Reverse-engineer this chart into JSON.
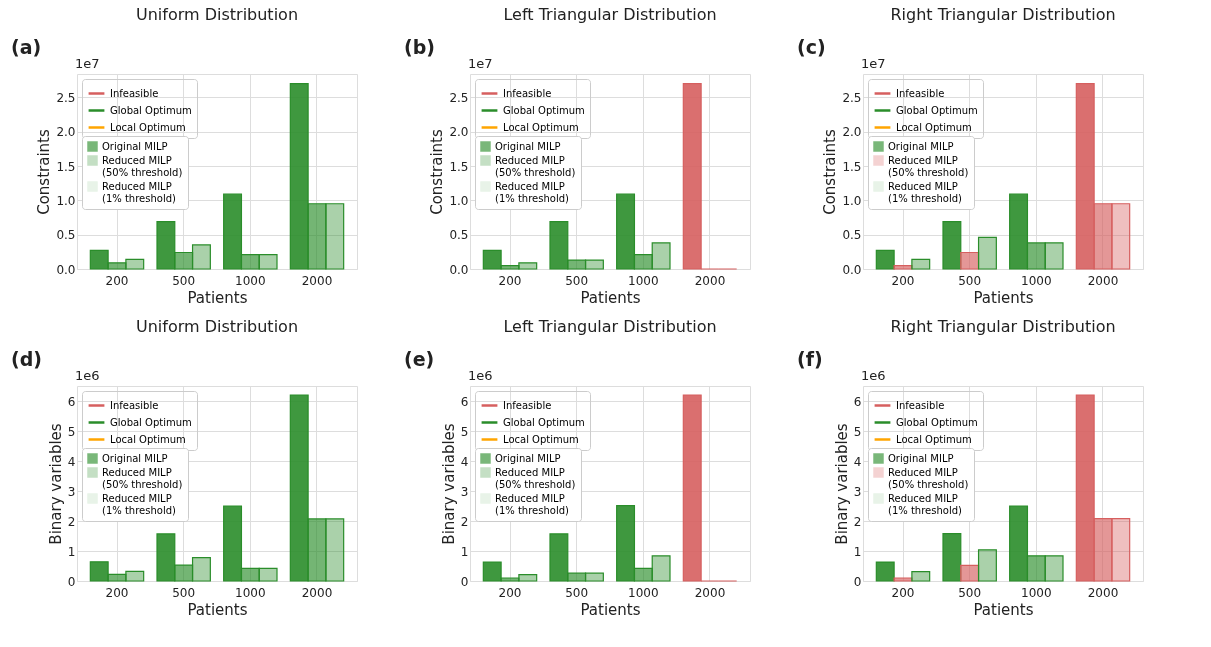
{
  "chart_data": [
    {
      "type": "bar",
      "title": "Uniform Distribution",
      "xlabel": "Patients",
      "ylabel": "Constraints",
      "categories": [
        "200",
        "500",
        "1000",
        "2000"
      ],
      "ylim": [
        0,
        2.84
      ],
      "yticks": [
        {
          "value": 0,
          "label": "0.0"
        },
        0.5,
        {
          "value": 1,
          "label": "1.0"
        },
        1.5,
        {
          "value": 2,
          "label": "2.0"
        },
        2.5
      ],
      "annotations": [
        "(a)",
        "1e7"
      ],
      "grid": true,
      "legend": "top left",
      "series": [
        {
          "name": "Original MILP",
          "values": [
            0.27,
            0.69,
            1.09,
            2.7
          ],
          "colors": [
            "#2a8d2a",
            "#2a8d2a",
            "#2a8d2a",
            "#2a8d2a"
          ]
        },
        {
          "name": "Reduced MILP\n(50% threshold)",
          "values": [
            0.09,
            0.24,
            0.21,
            0.95
          ],
          "colors": [
            "#2a8d2a",
            "#2a8d2a",
            "#2a8d2a",
            "#2a8d2a"
          ]
        },
        {
          "name": "Reduced MILP\n(1% threshold)",
          "values": [
            0.14,
            0.35,
            0.21,
            0.95
          ],
          "colors": [
            "#2a8d2a",
            "#2a8d2a",
            "#2a8d2a",
            "#2a8d2a"
          ]
        },
        {
          "name": "Infeasible",
          "type": "line",
          "color": "#d65f5f",
          "values": [
            null,
            null,
            null,
            null
          ]
        },
        {
          "name": "Global Optimum",
          "type": "line",
          "color": "#2a8d2a",
          "values": [
            null,
            null,
            null,
            null
          ]
        },
        {
          "name": "Local Optimum",
          "type": "line",
          "color": "#ffa500",
          "values": [
            null,
            null,
            null,
            null
          ]
        }
      ]
    },
    {
      "type": "bar",
      "title": "Left Triangular Distribution",
      "xlabel": "Patients",
      "ylabel": "Constraints",
      "categories": [
        "200",
        "500",
        "1000",
        "2000"
      ],
      "ylim": [
        0,
        2.84
      ],
      "yticks": [
        {
          "value": 0,
          "label": "0.0"
        },
        0.5,
        {
          "value": 1,
          "label": "1.0"
        },
        1.5,
        {
          "value": 2,
          "label": "2.0"
        },
        2.5
      ],
      "annotations": [
        "(b)",
        "1e7"
      ],
      "grid": true,
      "legend": "top left",
      "series": [
        {
          "name": "Original MILP",
          "values": [
            0.27,
            0.69,
            1.09,
            2.7
          ],
          "colors": [
            "#2a8d2a",
            "#2a8d2a",
            "#2a8d2a",
            "#d65f5f"
          ]
        },
        {
          "name": "Reduced MILP\n(50% threshold)",
          "values": [
            0.05,
            0.13,
            0.21,
            0
          ],
          "colors": [
            "#2a8d2a",
            "#2a8d2a",
            "#2a8d2a",
            "#d65f5f"
          ]
        },
        {
          "name": "Reduced MILP\n(1% threshold)",
          "values": [
            0.09,
            0.13,
            0.38,
            0
          ],
          "colors": [
            "#2a8d2a",
            "#2a8d2a",
            "#2a8d2a",
            "#d65f5f"
          ]
        },
        {
          "name": "Infeasible",
          "type": "line",
          "color": "#d65f5f",
          "values": [
            null,
            null,
            null,
            null
          ]
        },
        {
          "name": "Global Optimum",
          "type": "line",
          "color": "#2a8d2a",
          "values": [
            null,
            null,
            null,
            null
          ]
        },
        {
          "name": "Local Optimum",
          "type": "line",
          "color": "#ffa500",
          "values": [
            null,
            null,
            null,
            null
          ]
        }
      ]
    },
    {
      "type": "bar",
      "title": "Right Triangular Distribution",
      "xlabel": "Patients",
      "ylabel": "Constraints",
      "categories": [
        "200",
        "500",
        "1000",
        "2000"
      ],
      "ylim": [
        0,
        2.84
      ],
      "yticks": [
        {
          "value": 0,
          "label": "0.0"
        },
        0.5,
        {
          "value": 1,
          "label": "1.0"
        },
        1.5,
        {
          "value": 2,
          "label": "2.0"
        },
        2.5
      ],
      "annotations": [
        "(c)",
        "1e7"
      ],
      "grid": true,
      "legend": "top left",
      "series": [
        {
          "name": "Original MILP",
          "values": [
            0.27,
            0.69,
            1.09,
            2.7
          ],
          "colors": [
            "#2a8d2a",
            "#2a8d2a",
            "#2a8d2a",
            "#d65f5f"
          ]
        },
        {
          "name": "Reduced MILP\n(50% threshold)",
          "values": [
            0.05,
            0.24,
            0.38,
            0.95
          ],
          "colors": [
            "#d65f5f",
            "#d65f5f",
            "#2a8d2a",
            "#d65f5f"
          ]
        },
        {
          "name": "Reduced MILP\n(1% threshold)",
          "values": [
            0.14,
            0.46,
            0.38,
            0.95
          ],
          "colors": [
            "#2a8d2a",
            "#2a8d2a",
            "#2a8d2a",
            "#d65f5f"
          ]
        },
        {
          "name": "Infeasible",
          "type": "line",
          "color": "#d65f5f",
          "values": [
            null,
            null,
            null,
            null
          ]
        },
        {
          "name": "Global Optimum",
          "type": "line",
          "color": "#2a8d2a",
          "values": [
            null,
            null,
            null,
            null
          ]
        },
        {
          "name": "Local Optimum",
          "type": "line",
          "color": "#ffa500",
          "values": [
            null,
            null,
            null,
            null
          ]
        }
      ]
    },
    {
      "type": "bar",
      "title": "Uniform Distribution",
      "xlabel": "Patients",
      "ylabel": "Binary variables",
      "categories": [
        "200",
        "500",
        "1000",
        "2000"
      ],
      "ylim": [
        0,
        6.5
      ],
      "yticks": [
        0,
        1,
        2,
        3,
        4,
        5,
        6
      ],
      "annotations": [
        "(d)",
        "1e6"
      ],
      "grid": true,
      "legend": "top left",
      "series": [
        {
          "name": "Original MILP",
          "values": [
            0.64,
            1.57,
            2.5,
            6.2
          ],
          "colors": [
            "#2a8d2a",
            "#2a8d2a",
            "#2a8d2a",
            "#2a8d2a"
          ]
        },
        {
          "name": "Reduced MILP\n(50% threshold)",
          "values": [
            0.22,
            0.53,
            0.42,
            2.07
          ],
          "colors": [
            "#2a8d2a",
            "#2a8d2a",
            "#2a8d2a",
            "#2a8d2a"
          ]
        },
        {
          "name": "Reduced MILP\n(1% threshold)",
          "values": [
            0.32,
            0.78,
            0.42,
            2.07
          ],
          "colors": [
            "#2a8d2a",
            "#2a8d2a",
            "#2a8d2a",
            "#2a8d2a"
          ]
        },
        {
          "name": "Infeasible",
          "type": "line",
          "color": "#d65f5f",
          "values": [
            null,
            null,
            null,
            null
          ]
        },
        {
          "name": "Global Optimum",
          "type": "line",
          "color": "#2a8d2a",
          "values": [
            null,
            null,
            null,
            null
          ]
        },
        {
          "name": "Local Optimum",
          "type": "line",
          "color": "#ffa500",
          "values": [
            null,
            null,
            null,
            null
          ]
        }
      ]
    },
    {
      "type": "bar",
      "title": "Left Triangular Distribution",
      "xlabel": "Patients",
      "ylabel": "Binary variables",
      "categories": [
        "200",
        "500",
        "1000",
        "2000"
      ],
      "ylim": [
        0,
        6.5
      ],
      "yticks": [
        0,
        1,
        2,
        3,
        4,
        5,
        6
      ],
      "annotations": [
        "(e)",
        "1e6"
      ],
      "grid": true,
      "legend": "top left",
      "series": [
        {
          "name": "Original MILP",
          "values": [
            0.63,
            1.57,
            2.51,
            6.2
          ],
          "colors": [
            "#2a8d2a",
            "#2a8d2a",
            "#2a8d2a",
            "#d65f5f"
          ]
        },
        {
          "name": "Reduced MILP\n(50% threshold)",
          "values": [
            0.1,
            0.26,
            0.42,
            0
          ],
          "colors": [
            "#2a8d2a",
            "#2a8d2a",
            "#2a8d2a",
            "#d65f5f"
          ]
        },
        {
          "name": "Reduced MILP\n(1% threshold)",
          "values": [
            0.21,
            0.26,
            0.84,
            0
          ],
          "colors": [
            "#2a8d2a",
            "#2a8d2a",
            "#2a8d2a",
            "#d65f5f"
          ]
        },
        {
          "name": "Infeasible",
          "type": "line",
          "color": "#d65f5f",
          "values": [
            null,
            null,
            null,
            null
          ]
        },
        {
          "name": "Global Optimum",
          "type": "line",
          "color": "#2a8d2a",
          "values": [
            null,
            null,
            null,
            null
          ]
        },
        {
          "name": "Local Optimum",
          "type": "line",
          "color": "#ffa500",
          "values": [
            null,
            null,
            null,
            null
          ]
        }
      ]
    },
    {
      "type": "bar",
      "title": "Right Triangular Distribution",
      "xlabel": "Patients",
      "ylabel": "Binary variables",
      "categories": [
        "200",
        "500",
        "1000",
        "2000"
      ],
      "ylim": [
        0,
        6.5
      ],
      "yticks": [
        0,
        1,
        2,
        3,
        4,
        5,
        6
      ],
      "annotations": [
        "(f)",
        "1e6"
      ],
      "grid": true,
      "legend": "top left",
      "series": [
        {
          "name": "Original MILP",
          "values": [
            0.63,
            1.58,
            2.5,
            6.2
          ],
          "colors": [
            "#2a8d2a",
            "#2a8d2a",
            "#2a8d2a",
            "#d65f5f"
          ]
        },
        {
          "name": "Reduced MILP\n(50% threshold)",
          "values": [
            0.1,
            0.52,
            0.84,
            2.08
          ],
          "colors": [
            "#d65f5f",
            "#d65f5f",
            "#2a8d2a",
            "#d65f5f"
          ]
        },
        {
          "name": "Reduced MILP\n(1% threshold)",
          "values": [
            0.31,
            1.04,
            0.84,
            2.08
          ],
          "colors": [
            "#2a8d2a",
            "#2a8d2a",
            "#2a8d2a",
            "#d65f5f"
          ]
        },
        {
          "name": "Infeasible",
          "type": "line",
          "color": "#d65f5f",
          "values": [
            null,
            null,
            null,
            null
          ]
        },
        {
          "name": "Global Optimum",
          "type": "line",
          "color": "#2a8d2a",
          "values": [
            null,
            null,
            null,
            null
          ]
        },
        {
          "name": "Local Optimum",
          "type": "line",
          "color": "#ffa500",
          "values": [
            null,
            null,
            null,
            null
          ]
        }
      ]
    }
  ]
}
